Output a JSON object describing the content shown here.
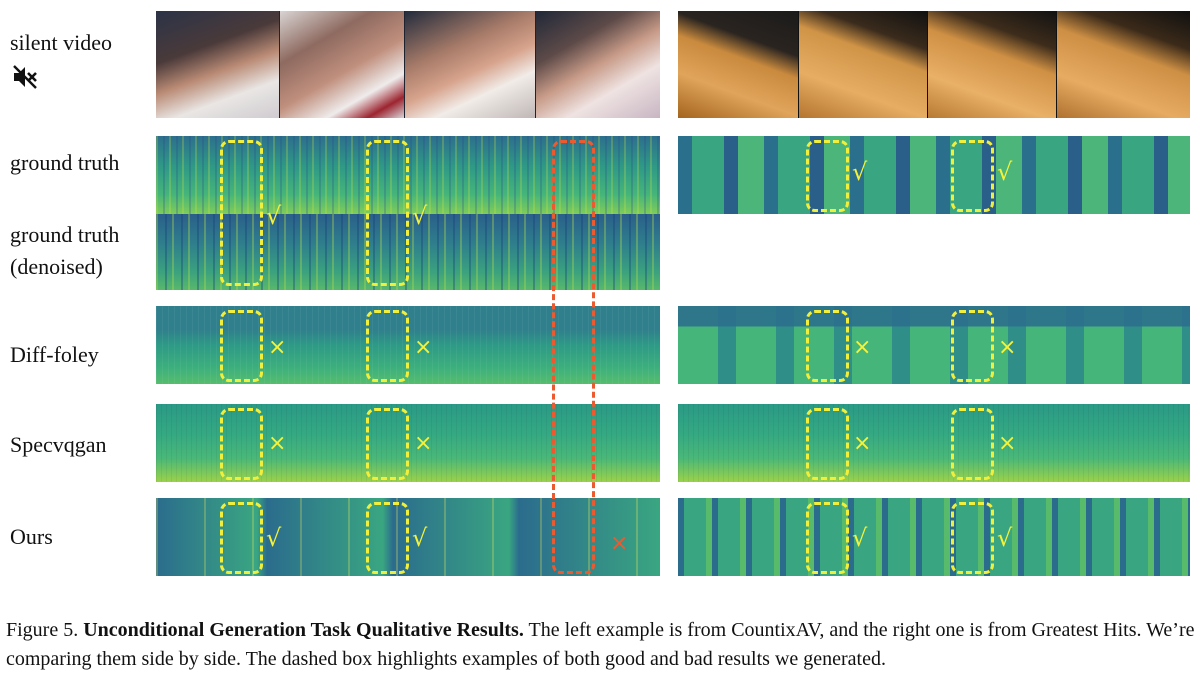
{
  "row_labels": {
    "silent_video": "silent video",
    "ground_truth": "ground truth",
    "ground_truth_denoised_line1": "ground truth",
    "ground_truth_denoised_line2": "(denoised)",
    "diff_foley": "Diff-foley",
    "specvqgan": "Specvqgan",
    "ours": "Ours"
  },
  "icons": {
    "mute": "speaker-muted-icon"
  },
  "marks": {
    "check": "√",
    "cross": "×"
  },
  "colors": {
    "highlight_good": "#f2ef3c",
    "highlight_bad": "#ee5a2f"
  },
  "caption": {
    "prefix": "Figure 5. ",
    "bold": "Unconditional Generation Task Qualitative Results.",
    "rest": " The left example is from CountixAV, and the right one is from Greatest Hits. We’re comparing them side by side. The dashed box highlights examples of both good and bad results we generated."
  }
}
